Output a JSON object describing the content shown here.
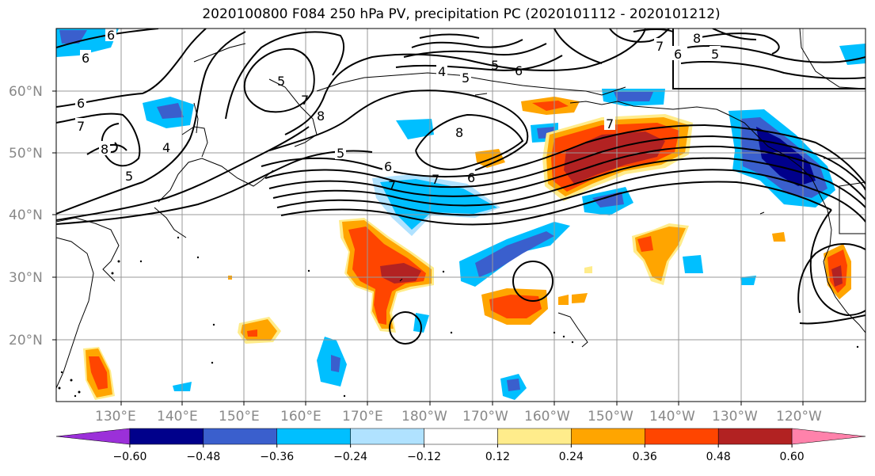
{
  "title": "2020100800 F084 250 hPa PV, precipitation PC (2020101112 - 2020101212)",
  "lat_labels": [
    "60°N",
    "50°N",
    "40°N",
    "30°N",
    "20°N"
  ],
  "lon_labels": [
    "130°E",
    "140°E",
    "150°E",
    "160°E",
    "170°E",
    "180°W",
    "170°W",
    "160°W",
    "150°W",
    "140°W",
    "130°W",
    "120°W"
  ],
  "colorbar": {
    "ticks": [
      "−0.60",
      "−0.48",
      "−0.36",
      "−0.24",
      "−0.12",
      "0.12",
      "0.24",
      "0.36",
      "0.48",
      "0.60"
    ],
    "colors": [
      "#9b30d9",
      "#00008b",
      "#3a5fcd",
      "#00bfff",
      "#b0e2ff",
      "#ffffff",
      "#ffec8b",
      "#ffa500",
      "#ff4500",
      "#b22222",
      "#ff82ab"
    ]
  },
  "contour_labels": [
    "6",
    "6",
    "7",
    "8",
    "4",
    "5",
    "6",
    "5",
    "7",
    "8",
    "5",
    "6",
    "7",
    "4",
    "5",
    "6",
    "7",
    "8",
    "5",
    "6",
    "7",
    "8",
    "7",
    "5",
    "6"
  ]
}
